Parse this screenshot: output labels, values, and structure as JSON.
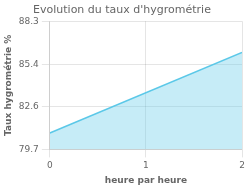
{
  "chart_data": {
    "type": "area",
    "title": "Evolution du taux d'hygrométrie",
    "x_label": "heure par heure",
    "y_label": "Taux hygrométrie %",
    "x": [
      0,
      2
    ],
    "values": [
      80.8,
      86.2
    ],
    "color": "#5bc8e8",
    "xlim": [
      0,
      2
    ],
    "xticks": [
      0,
      1,
      2
    ],
    "ylim": [
      79.7,
      88.3
    ],
    "yticks": [
      79.7,
      82.6,
      85.4,
      88.3
    ],
    "grid": true
  }
}
